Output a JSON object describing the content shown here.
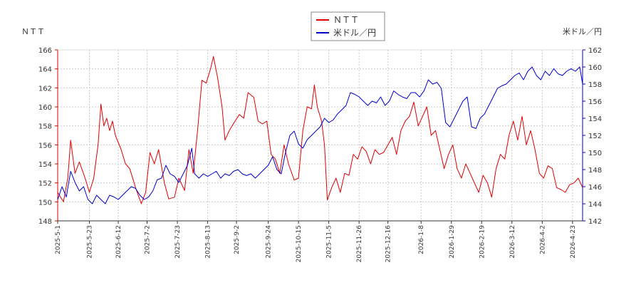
{
  "chart_data": {
    "type": "line",
    "left_axis_label": "ＮＴＴ",
    "right_axis_label": "米ドル／円",
    "left_ylim": [
      148,
      166
    ],
    "left_yticks": [
      148,
      150,
      152,
      154,
      156,
      158,
      160,
      162,
      164,
      166
    ],
    "right_ylim": [
      142,
      162
    ],
    "right_yticks": [
      142,
      144,
      146,
      148,
      150,
      152,
      154,
      156,
      158,
      160,
      162
    ],
    "x_range": [
      "2025-05-01",
      "2026-04-30"
    ],
    "x_tick_labels": [
      "2025-5-1",
      "2025-5-23",
      "2025-6-12",
      "2025-7-2",
      "2025-7-23",
      "2025-8-13",
      "2025-9-2",
      "2025-9-24",
      "2025-10-15",
      "2025-11-5",
      "2025-11-26",
      "2025-12-16",
      "2026-1-8",
      "2026-1-29",
      "2026-2-19",
      "2026-3-12",
      "2026-4-2",
      "2026-4-23"
    ],
    "x_tick_dates": [
      "2025-05-01",
      "2025-05-23",
      "2025-06-12",
      "2025-07-02",
      "2025-07-23",
      "2025-08-13",
      "2025-09-02",
      "2025-09-24",
      "2025-10-15",
      "2025-11-05",
      "2025-11-26",
      "2025-12-16",
      "2026-01-08",
      "2026-01-29",
      "2026-02-19",
      "2026-03-12",
      "2026-04-02",
      "2026-04-23"
    ],
    "grid": true,
    "legend_position": "top-center",
    "series": [
      {
        "name": "ＮＴＴ",
        "axis": "left",
        "color": "#dd0000",
        "points": [
          [
            "2025-05-01",
            151.0
          ],
          [
            "2025-05-05",
            150.0
          ],
          [
            "2025-05-08",
            152.5
          ],
          [
            "2025-05-10",
            156.5
          ],
          [
            "2025-05-13",
            153.0
          ],
          [
            "2025-05-16",
            154.2
          ],
          [
            "2025-05-20",
            152.5
          ],
          [
            "2025-05-23",
            151.0
          ],
          [
            "2025-05-26",
            152.5
          ],
          [
            "2025-05-29",
            156.0
          ],
          [
            "2025-05-31",
            160.3
          ],
          [
            "2025-06-02",
            158.0
          ],
          [
            "2025-06-04",
            158.8
          ],
          [
            "2025-06-06",
            157.5
          ],
          [
            "2025-06-08",
            158.5
          ],
          [
            "2025-06-10",
            157.0
          ],
          [
            "2025-06-14",
            155.5
          ],
          [
            "2025-06-17",
            154.0
          ],
          [
            "2025-06-20",
            153.5
          ],
          [
            "2025-06-24",
            151.5
          ],
          [
            "2025-06-28",
            149.8
          ],
          [
            "2025-07-01",
            151.0
          ],
          [
            "2025-07-04",
            155.2
          ],
          [
            "2025-07-07",
            154.0
          ],
          [
            "2025-07-10",
            155.5
          ],
          [
            "2025-07-14",
            152.0
          ],
          [
            "2025-07-17",
            150.3
          ],
          [
            "2025-07-21",
            150.5
          ],
          [
            "2025-07-24",
            152.5
          ],
          [
            "2025-07-28",
            151.2
          ],
          [
            "2025-07-31",
            155.5
          ],
          [
            "2025-08-03",
            153.0
          ],
          [
            "2025-08-06",
            157.5
          ],
          [
            "2025-08-09",
            162.8
          ],
          [
            "2025-08-12",
            162.5
          ],
          [
            "2025-08-15",
            164.0
          ],
          [
            "2025-08-17",
            165.3
          ],
          [
            "2025-08-20",
            163.0
          ],
          [
            "2025-08-23",
            160.0
          ],
          [
            "2025-08-25",
            156.5
          ],
          [
            "2025-08-28",
            157.5
          ],
          [
            "2025-09-01",
            158.5
          ],
          [
            "2025-09-04",
            159.2
          ],
          [
            "2025-09-07",
            158.8
          ],
          [
            "2025-09-10",
            161.5
          ],
          [
            "2025-09-14",
            161.0
          ],
          [
            "2025-09-17",
            158.5
          ],
          [
            "2025-09-20",
            158.2
          ],
          [
            "2025-09-23",
            158.5
          ],
          [
            "2025-09-26",
            155.0
          ],
          [
            "2025-09-29",
            154.5
          ],
          [
            "2025-10-02",
            153.0
          ],
          [
            "2025-10-05",
            156.0
          ],
          [
            "2025-10-08",
            154.0
          ],
          [
            "2025-10-12",
            152.3
          ],
          [
            "2025-10-15",
            152.5
          ],
          [
            "2025-10-18",
            157.5
          ],
          [
            "2025-10-21",
            160.0
          ],
          [
            "2025-10-24",
            159.8
          ],
          [
            "2025-10-26",
            162.3
          ],
          [
            "2025-10-28",
            160.0
          ],
          [
            "2025-10-31",
            158.5
          ],
          [
            "2025-11-02",
            156.0
          ],
          [
            "2025-11-04",
            150.2
          ],
          [
            "2025-11-07",
            151.5
          ],
          [
            "2025-11-10",
            152.5
          ],
          [
            "2025-11-13",
            151.0
          ],
          [
            "2025-11-16",
            153.0
          ],
          [
            "2025-11-19",
            152.8
          ],
          [
            "2025-11-22",
            155.0
          ],
          [
            "2025-11-25",
            154.5
          ],
          [
            "2025-11-28",
            155.8
          ],
          [
            "2025-12-01",
            155.3
          ],
          [
            "2025-12-04",
            154.0
          ],
          [
            "2025-12-07",
            155.5
          ],
          [
            "2025-12-10",
            155.0
          ],
          [
            "2025-12-13",
            155.2
          ],
          [
            "2025-12-16",
            156.0
          ],
          [
            "2025-12-19",
            156.8
          ],
          [
            "2025-12-22",
            155.0
          ],
          [
            "2025-12-25",
            157.5
          ],
          [
            "2025-12-28",
            158.5
          ],
          [
            "2025-12-31",
            159.0
          ],
          [
            "2026-01-03",
            160.5
          ],
          [
            "2026-01-06",
            158.0
          ],
          [
            "2026-01-09",
            159.0
          ],
          [
            "2026-01-12",
            160.0
          ],
          [
            "2026-01-15",
            157.0
          ],
          [
            "2026-01-18",
            157.5
          ],
          [
            "2026-01-21",
            155.5
          ],
          [
            "2026-01-24",
            153.5
          ],
          [
            "2026-01-27",
            155.0
          ],
          [
            "2026-01-30",
            156.0
          ],
          [
            "2026-02-02",
            153.5
          ],
          [
            "2026-02-05",
            152.5
          ],
          [
            "2026-02-08",
            154.0
          ],
          [
            "2026-02-11",
            153.0
          ],
          [
            "2026-02-14",
            152.0
          ],
          [
            "2026-02-17",
            151.0
          ],
          [
            "2026-02-20",
            152.8
          ],
          [
            "2026-02-23",
            152.0
          ],
          [
            "2026-02-26",
            150.5
          ],
          [
            "2026-03-01",
            153.5
          ],
          [
            "2026-03-04",
            155.0
          ],
          [
            "2026-03-07",
            154.5
          ],
          [
            "2026-03-10",
            157.0
          ],
          [
            "2026-03-13",
            158.5
          ],
          [
            "2026-03-16",
            156.5
          ],
          [
            "2026-03-19",
            159.0
          ],
          [
            "2026-03-22",
            156.0
          ],
          [
            "2026-03-25",
            157.5
          ],
          [
            "2026-03-28",
            155.5
          ],
          [
            "2026-03-31",
            153.0
          ],
          [
            "2026-04-03",
            152.5
          ],
          [
            "2026-04-06",
            153.8
          ],
          [
            "2026-04-09",
            153.5
          ],
          [
            "2026-04-12",
            151.5
          ],
          [
            "2026-04-15",
            151.3
          ],
          [
            "2026-04-18",
            151.0
          ],
          [
            "2026-04-21",
            151.8
          ],
          [
            "2026-04-24",
            152.0
          ],
          [
            "2026-04-27",
            152.5
          ],
          [
            "2026-04-30",
            151.5
          ]
        ]
      },
      {
        "name": "米ドル／円",
        "axis": "right",
        "color": "#0000cc",
        "points": [
          [
            "2025-05-01",
            144.5
          ],
          [
            "2025-05-04",
            146.0
          ],
          [
            "2025-05-07",
            144.8
          ],
          [
            "2025-05-10",
            147.8
          ],
          [
            "2025-05-13",
            146.5
          ],
          [
            "2025-05-16",
            145.5
          ],
          [
            "2025-05-19",
            146.0
          ],
          [
            "2025-05-22",
            144.5
          ],
          [
            "2025-05-25",
            144.0
          ],
          [
            "2025-05-28",
            145.0
          ],
          [
            "2025-05-31",
            144.5
          ],
          [
            "2025-06-03",
            144.0
          ],
          [
            "2025-06-06",
            145.0
          ],
          [
            "2025-06-09",
            144.8
          ],
          [
            "2025-06-12",
            144.5
          ],
          [
            "2025-06-15",
            145.0
          ],
          [
            "2025-06-18",
            145.5
          ],
          [
            "2025-06-21",
            146.0
          ],
          [
            "2025-06-24",
            145.8
          ],
          [
            "2025-06-27",
            145.0
          ],
          [
            "2025-06-30",
            144.5
          ],
          [
            "2025-07-03",
            144.8
          ],
          [
            "2025-07-06",
            145.5
          ],
          [
            "2025-07-09",
            146.8
          ],
          [
            "2025-07-12",
            147.0
          ],
          [
            "2025-07-15",
            148.5
          ],
          [
            "2025-07-18",
            147.5
          ],
          [
            "2025-07-21",
            147.2
          ],
          [
            "2025-07-24",
            146.5
          ],
          [
            "2025-07-27",
            147.5
          ],
          [
            "2025-07-30",
            148.5
          ],
          [
            "2025-08-02",
            150.5
          ],
          [
            "2025-08-04",
            147.5
          ],
          [
            "2025-08-07",
            147.0
          ],
          [
            "2025-08-10",
            147.5
          ],
          [
            "2025-08-13",
            147.2
          ],
          [
            "2025-08-16",
            147.5
          ],
          [
            "2025-08-19",
            147.8
          ],
          [
            "2025-08-22",
            147.0
          ],
          [
            "2025-08-25",
            147.5
          ],
          [
            "2025-08-28",
            147.3
          ],
          [
            "2025-08-31",
            147.8
          ],
          [
            "2025-09-03",
            148.0
          ],
          [
            "2025-09-06",
            147.5
          ],
          [
            "2025-09-09",
            147.3
          ],
          [
            "2025-09-12",
            147.5
          ],
          [
            "2025-09-15",
            147.0
          ],
          [
            "2025-09-18",
            147.5
          ],
          [
            "2025-09-21",
            148.0
          ],
          [
            "2025-09-24",
            148.5
          ],
          [
            "2025-09-27",
            149.5
          ],
          [
            "2025-09-30",
            148.0
          ],
          [
            "2025-10-03",
            147.5
          ],
          [
            "2025-10-06",
            150.0
          ],
          [
            "2025-10-09",
            152.0
          ],
          [
            "2025-10-12",
            152.5
          ],
          [
            "2025-10-15",
            151.0
          ],
          [
            "2025-10-18",
            150.5
          ],
          [
            "2025-10-21",
            151.5
          ],
          [
            "2025-10-24",
            152.0
          ],
          [
            "2025-10-27",
            152.5
          ],
          [
            "2025-10-30",
            153.0
          ],
          [
            "2025-11-02",
            154.0
          ],
          [
            "2025-11-05",
            153.5
          ],
          [
            "2025-11-08",
            153.8
          ],
          [
            "2025-11-11",
            154.5
          ],
          [
            "2025-11-14",
            155.0
          ],
          [
            "2025-11-17",
            155.5
          ],
          [
            "2025-11-20",
            157.0
          ],
          [
            "2025-11-23",
            156.8
          ],
          [
            "2025-11-26",
            156.5
          ],
          [
            "2025-11-29",
            156.0
          ],
          [
            "2025-12-02",
            155.5
          ],
          [
            "2025-12-05",
            156.0
          ],
          [
            "2025-12-08",
            155.8
          ],
          [
            "2025-12-11",
            156.5
          ],
          [
            "2025-12-14",
            155.5
          ],
          [
            "2025-12-17",
            156.0
          ],
          [
            "2025-12-20",
            157.2
          ],
          [
            "2025-12-23",
            156.8
          ],
          [
            "2025-12-26",
            156.5
          ],
          [
            "2025-12-29",
            156.3
          ],
          [
            "2026-01-01",
            157.0
          ],
          [
            "2026-01-04",
            157.0
          ],
          [
            "2026-01-07",
            156.5
          ],
          [
            "2026-01-10",
            157.2
          ],
          [
            "2026-01-13",
            158.5
          ],
          [
            "2026-01-16",
            158.0
          ],
          [
            "2026-01-19",
            158.2
          ],
          [
            "2026-01-22",
            157.5
          ],
          [
            "2026-01-25",
            153.5
          ],
          [
            "2026-01-28",
            153.0
          ],
          [
            "2026-01-31",
            154.0
          ],
          [
            "2026-02-03",
            155.0
          ],
          [
            "2026-02-06",
            156.0
          ],
          [
            "2026-02-09",
            156.5
          ],
          [
            "2026-02-12",
            153.0
          ],
          [
            "2026-02-15",
            152.8
          ],
          [
            "2026-02-18",
            154.0
          ],
          [
            "2026-02-21",
            154.5
          ],
          [
            "2026-02-24",
            155.5
          ],
          [
            "2026-02-27",
            156.5
          ],
          [
            "2026-03-02",
            157.5
          ],
          [
            "2026-03-05",
            157.8
          ],
          [
            "2026-03-08",
            158.0
          ],
          [
            "2026-03-11",
            158.5
          ],
          [
            "2026-03-14",
            159.0
          ],
          [
            "2026-03-17",
            159.3
          ],
          [
            "2026-03-20",
            158.5
          ],
          [
            "2026-03-23",
            159.5
          ],
          [
            "2026-03-26",
            160.0
          ],
          [
            "2026-03-29",
            159.0
          ],
          [
            "2026-04-01",
            158.5
          ],
          [
            "2026-04-04",
            159.5
          ],
          [
            "2026-04-07",
            159.0
          ],
          [
            "2026-04-10",
            159.8
          ],
          [
            "2026-04-13",
            159.2
          ],
          [
            "2026-04-16",
            159.0
          ],
          [
            "2026-04-19",
            159.5
          ],
          [
            "2026-04-22",
            159.8
          ],
          [
            "2026-04-25",
            159.5
          ],
          [
            "2026-04-28",
            160.0
          ],
          [
            "2026-04-30",
            158.0
          ]
        ]
      }
    ]
  }
}
